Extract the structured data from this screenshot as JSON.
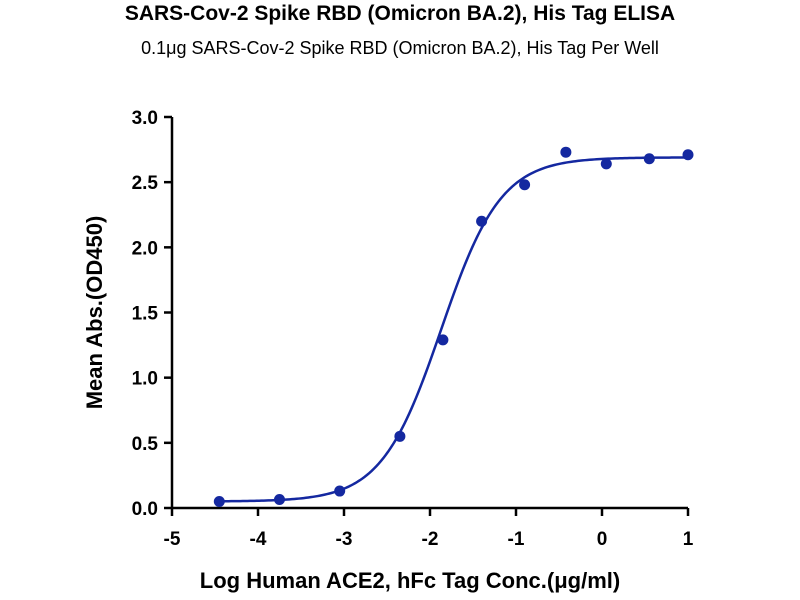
{
  "chart_data": {
    "type": "scatter",
    "title": "SARS-Cov-2 Spike RBD (Omicron BA.2), His Tag ELISA",
    "subtitle": "0.1μg SARS-Cov-2 Spike RBD (Omicron BA.2), His Tag Per Well",
    "xlabel": "Log Human ACE2, hFc Tag Conc.(μg/ml)",
    "ylabel": "Mean Abs.(OD450)",
    "xlim": [
      -5,
      1
    ],
    "ylim": [
      0,
      3.0
    ],
    "xticks": [
      "-5",
      "-4",
      "-3",
      "-2",
      "-1",
      "0",
      "1"
    ],
    "yticks": [
      "0.0",
      "0.5",
      "1.0",
      "1.5",
      "2.0",
      "2.5",
      "3.0"
    ],
    "grid": false,
    "series": [
      {
        "x": [
          -4.45,
          -3.75,
          -3.05,
          -2.35,
          -1.85,
          -1.4,
          -0.9,
          -0.42,
          0.05,
          0.55,
          1.0
        ],
        "y": [
          0.05,
          0.065,
          0.13,
          0.55,
          1.29,
          2.2,
          2.48,
          2.73,
          2.64,
          2.68,
          2.71
        ],
        "color": "#1428a0"
      }
    ],
    "fit": {
      "type": "4PL",
      "bottom": 0.05,
      "top": 2.69,
      "logEC50": -1.87,
      "hillslope": 1.25,
      "color": "#1428a0"
    }
  }
}
